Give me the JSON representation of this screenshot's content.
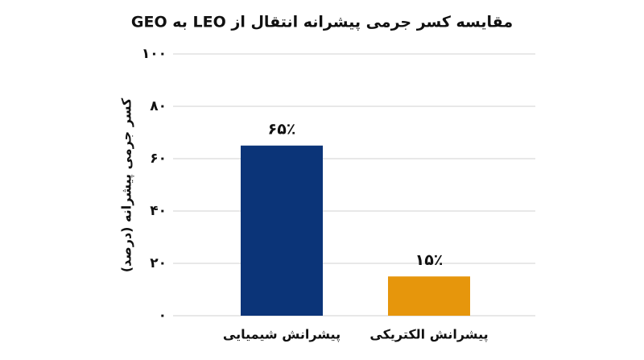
{
  "chart_data": {
    "type": "bar",
    "title": "مقایسه کسر جرمی پیشرانه انتقال از LEO به GEO",
    "y_label": "کسر جرمی پیشرانه (درصد)",
    "categories": [
      "پیشرانش شیمیایی",
      "پیشرانش الکتریکی"
    ],
    "values": [
      65,
      15
    ],
    "value_labels": [
      "۶۵٪",
      "۱۵٪"
    ],
    "colors": [
      "#0b3478",
      "#e6960c"
    ],
    "ylim": [
      0,
      100
    ],
    "yticks": [
      {
        "value": 0,
        "label": "۰"
      },
      {
        "value": 20,
        "label": "۲۰"
      },
      {
        "value": 40,
        "label": "۴۰"
      },
      {
        "value": 60,
        "label": "۶۰"
      },
      {
        "value": 80,
        "label": "۸۰"
      },
      {
        "value": 100,
        "label": "۱۰۰"
      }
    ],
    "grid": true
  }
}
